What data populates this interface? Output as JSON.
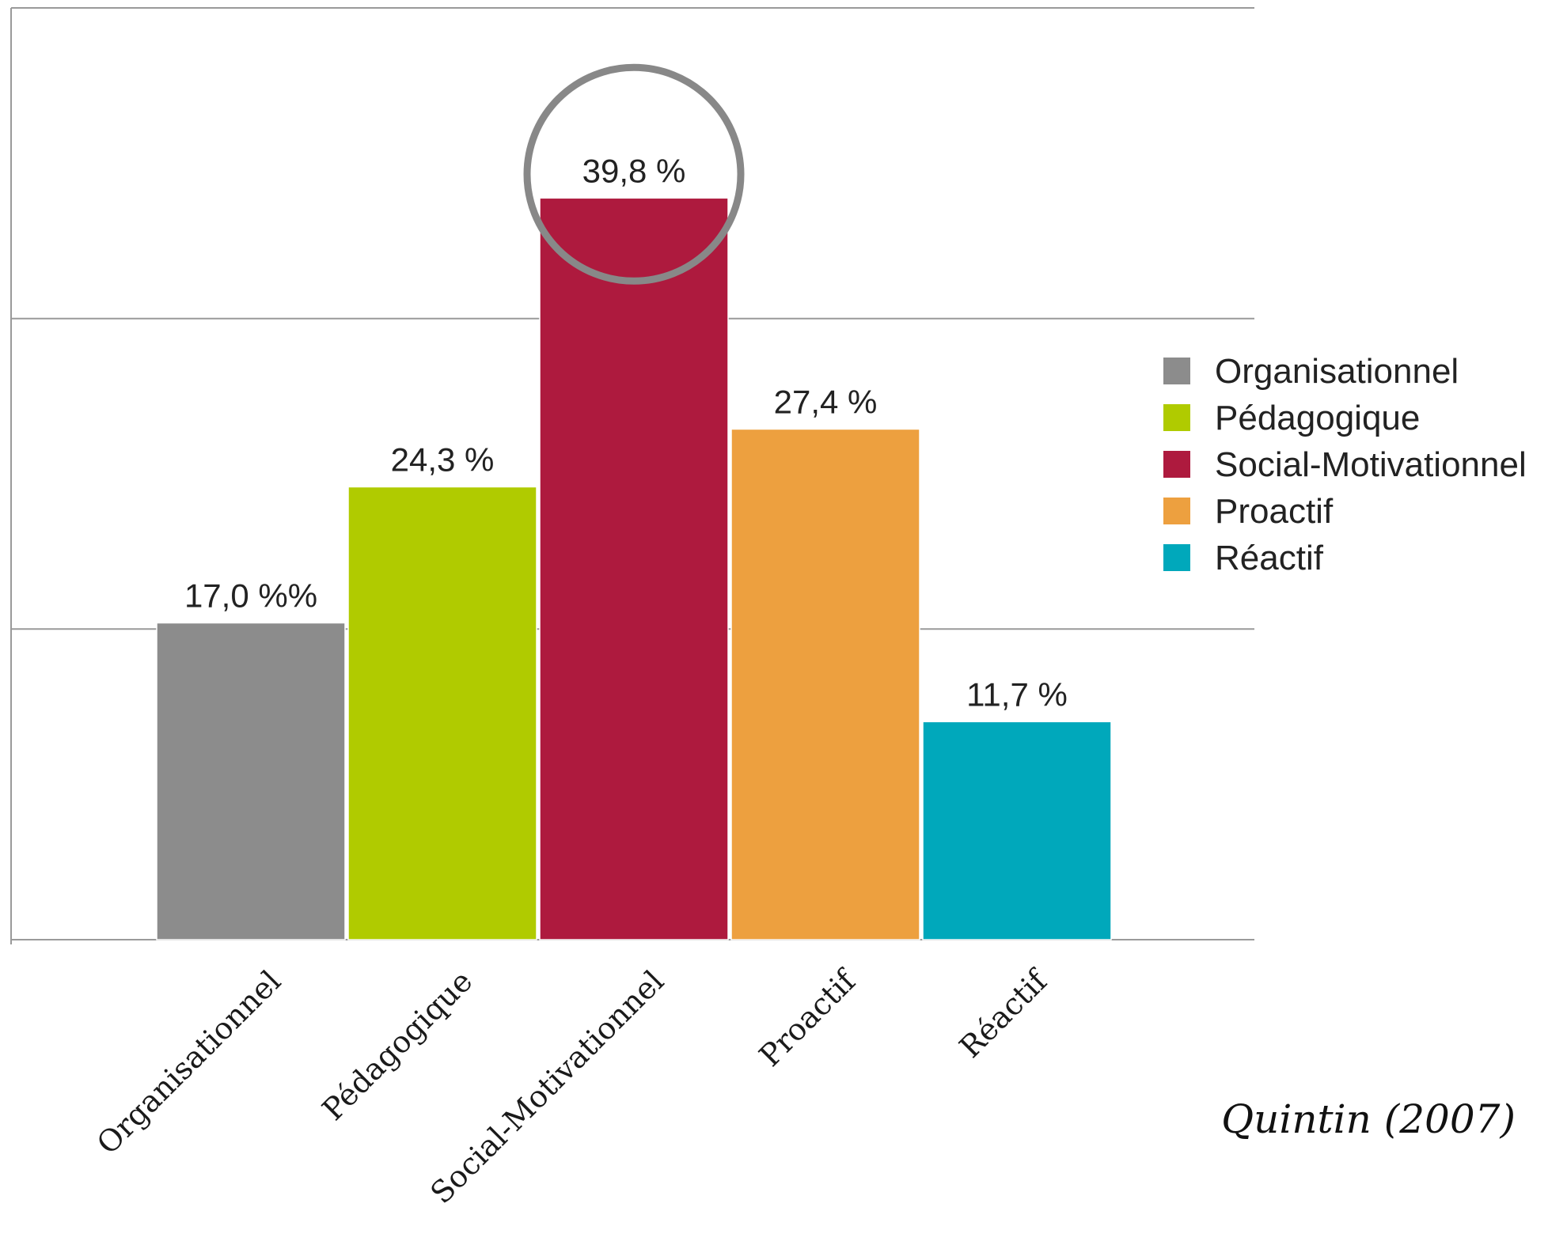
{
  "chart_data": {
    "type": "bar",
    "categories": [
      "Organisationnel",
      "Pédagogique",
      "Social-Motivationnel",
      "Proactif",
      "Réactif"
    ],
    "values": [
      17.0,
      24.3,
      39.8,
      27.4,
      11.7
    ],
    "data_labels": [
      "17,0 %%",
      "24,3 %",
      "39,8 %",
      "27,4 %",
      "11,7 %"
    ],
    "colors": [
      "#8c8c8c",
      "#b0cb00",
      "#ae1a3e",
      "#eda03f",
      "#00a8bb"
    ],
    "highlight_index": 2,
    "highlight_color": "#888888",
    "ylim": [
      0,
      50
    ],
    "gridlines": [
      0,
      16.67,
      33.33,
      50
    ],
    "grid": true,
    "legend": {
      "position": "right",
      "entries": [
        "Organisationnel",
        "Pédagogique",
        "Social-Motivationnel",
        "Proactif",
        "Réactif"
      ]
    },
    "source": "Quintin (2007)",
    "title": "",
    "xlabel": "",
    "ylabel": ""
  }
}
